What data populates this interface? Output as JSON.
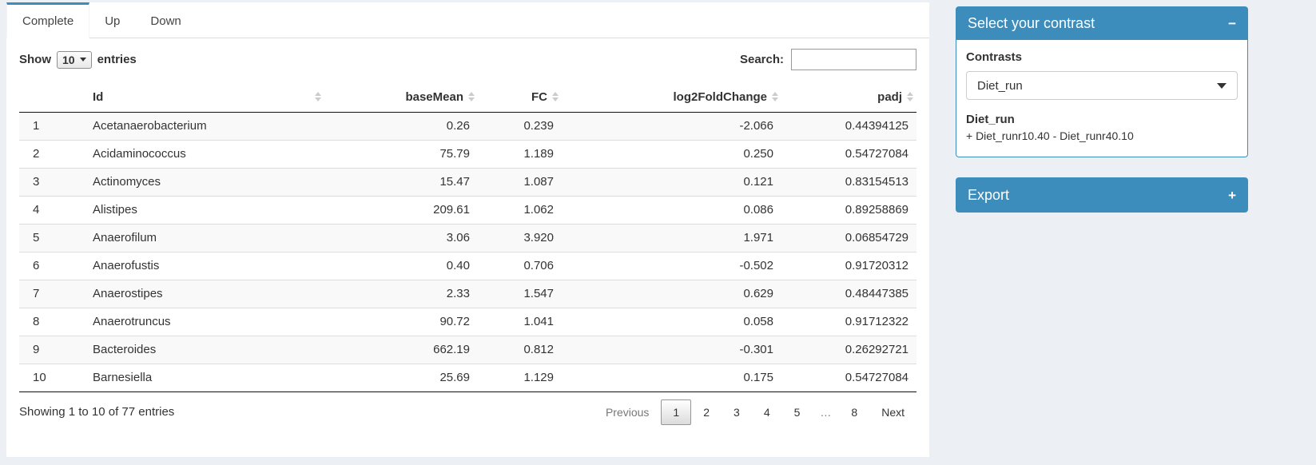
{
  "colors": {
    "accent": "#3c8dbc",
    "page_bg": "#ecf0f5"
  },
  "tabs": [
    {
      "label": "Complete",
      "active": true
    },
    {
      "label": "Up",
      "active": false
    },
    {
      "label": "Down",
      "active": false
    }
  ],
  "table_controls": {
    "show_label": "Show",
    "length_value": "10",
    "entries_label": "entries",
    "search_label": "Search:",
    "search_value": ""
  },
  "table": {
    "columns": [
      "Id",
      "baseMean",
      "FC",
      "log2FoldChange",
      "padj"
    ],
    "rows": [
      {
        "num": "1",
        "id": "Acetanaerobacterium",
        "baseMean": "0.26",
        "fc": "0.239",
        "log2fc": "-2.066",
        "padj": "0.44394125"
      },
      {
        "num": "2",
        "id": "Acidaminococcus",
        "baseMean": "75.79",
        "fc": "1.189",
        "log2fc": "0.250",
        "padj": "0.54727084"
      },
      {
        "num": "3",
        "id": "Actinomyces",
        "baseMean": "15.47",
        "fc": "1.087",
        "log2fc": "0.121",
        "padj": "0.83154513"
      },
      {
        "num": "4",
        "id": "Alistipes",
        "baseMean": "209.61",
        "fc": "1.062",
        "log2fc": "0.086",
        "padj": "0.89258869"
      },
      {
        "num": "5",
        "id": "Anaerofilum",
        "baseMean": "3.06",
        "fc": "3.920",
        "log2fc": "1.971",
        "padj": "0.06854729"
      },
      {
        "num": "6",
        "id": "Anaerofustis",
        "baseMean": "0.40",
        "fc": "0.706",
        "log2fc": "-0.502",
        "padj": "0.91720312"
      },
      {
        "num": "7",
        "id": "Anaerostipes",
        "baseMean": "2.33",
        "fc": "1.547",
        "log2fc": "0.629",
        "padj": "0.48447385"
      },
      {
        "num": "8",
        "id": "Anaerotruncus",
        "baseMean": "90.72",
        "fc": "1.041",
        "log2fc": "0.058",
        "padj": "0.91712322"
      },
      {
        "num": "9",
        "id": "Bacteroides",
        "baseMean": "662.19",
        "fc": "0.812",
        "log2fc": "-0.301",
        "padj": "0.26292721"
      },
      {
        "num": "10",
        "id": "Barnesiella",
        "baseMean": "25.69",
        "fc": "1.129",
        "log2fc": "0.175",
        "padj": "0.54727084"
      }
    ]
  },
  "footer": {
    "info": "Showing 1 to 10 of 77 entries",
    "pagination": [
      {
        "name": "pagination-previous",
        "label": "Previous",
        "state": "disabled"
      },
      {
        "name": "pagination-page-1",
        "label": "1",
        "state": "active"
      },
      {
        "name": "pagination-page-2",
        "label": "2",
        "state": ""
      },
      {
        "name": "pagination-page-3",
        "label": "3",
        "state": ""
      },
      {
        "name": "pagination-page-4",
        "label": "4",
        "state": ""
      },
      {
        "name": "pagination-page-5",
        "label": "5",
        "state": ""
      },
      {
        "name": "pagination-ellipsis",
        "label": "…",
        "state": "ellipsis"
      },
      {
        "name": "pagination-page-8",
        "label": "8",
        "state": ""
      },
      {
        "name": "pagination-next",
        "label": "Next",
        "state": ""
      }
    ]
  },
  "sidebar": {
    "contrast_panel": {
      "title": "Select your contrast",
      "collapse_icon": "−",
      "contrasts_label": "Contrasts",
      "selected_contrast": "Diet_run",
      "contrast_name": "Diet_run",
      "contrast_formula": "+ Diet_runr10.40 - Diet_runr40.10"
    },
    "export_panel": {
      "title": "Export",
      "collapse_icon": "+"
    }
  }
}
